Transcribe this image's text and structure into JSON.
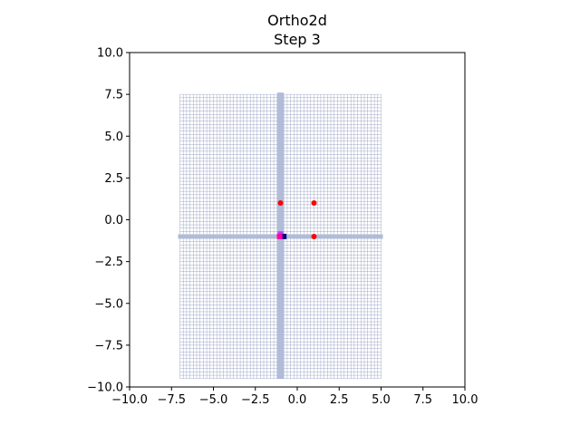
{
  "chart_data": {
    "type": "scatter",
    "title": "Ortho2d",
    "subtitle": "Step 3",
    "xlabel": "",
    "ylabel": "",
    "xlim": [
      -10,
      10
    ],
    "ylim": [
      -10,
      10
    ],
    "x_ticks": [
      -10,
      -7.5,
      -5,
      -2.5,
      0,
      2.5,
      5,
      7.5,
      10
    ],
    "y_ticks": [
      -10,
      -7.5,
      -5,
      -2.5,
      0,
      2.5,
      5,
      7.5,
      10
    ],
    "x_tick_labels": [
      "−10.0",
      "−7.5",
      "−5.0",
      "−2.5",
      "0.0",
      "2.5",
      "5.0",
      "7.5",
      "10.0"
    ],
    "y_tick_labels": [
      "−10.0",
      "−7.5",
      "−5.0",
      "−2.5",
      "0.0",
      "2.5",
      "5.0",
      "7.5",
      "10.0"
    ],
    "grid": false,
    "mesh": {
      "x_range": [
        -7,
        5
      ],
      "y_range": [
        -9.5,
        7.5
      ],
      "spacing": 0.2,
      "color": "#3a4d8f",
      "highlight_x": -1,
      "highlight_y": -1,
      "highlight_color": "#b0bcd8"
    },
    "points": [
      {
        "x": -1,
        "y": 1,
        "color": "#ff0000"
      },
      {
        "x": 1,
        "y": 1,
        "color": "#ff0000"
      },
      {
        "x": 1,
        "y": -1,
        "color": "#ff0000"
      }
    ],
    "markers": [
      {
        "x": -1.0,
        "y": -0.85,
        "color": "#cc33ff",
        "shape": "square"
      },
      {
        "x": -0.8,
        "y": -1.0,
        "color": "#000080",
        "shape": "square"
      },
      {
        "x": -1.05,
        "y": -1.0,
        "color": "#ff00aa",
        "shape": "square"
      }
    ]
  }
}
